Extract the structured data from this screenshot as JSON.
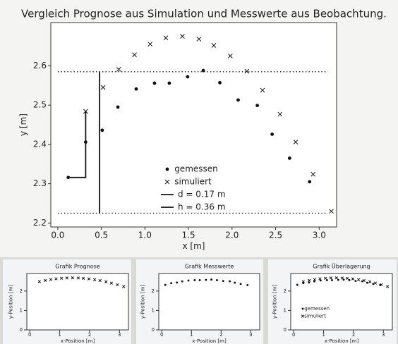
{
  "chart_data": [
    {
      "type": "scatter",
      "title": "Vergleich Prognose aus Simulation und Messwerte aus Beobachtung.",
      "xlabel": "x [m]",
      "ylabel": "y [m]",
      "xlim": [
        -0.08,
        3.2
      ],
      "ylim": [
        2.19,
        2.71
      ],
      "xticks": [
        {
          "value": 0,
          "label": "0.0"
        },
        0.5,
        {
          "value": 1,
          "label": "1.0"
        },
        1.5,
        {
          "value": 2,
          "label": "2.0"
        },
        2.5,
        {
          "value": 3,
          "label": "3.0"
        }
      ],
      "yticks": [
        2.2,
        2.3,
        2.4,
        2.5,
        2.6
      ],
      "legend": "lower center",
      "series": [
        {
          "name": "gemessen",
          "marker": "dot",
          "color": "#111",
          "x": [
            0.12,
            0.32,
            0.51,
            0.69,
            0.9,
            1.11,
            1.28,
            1.49,
            1.67,
            1.86,
            2.07,
            2.29,
            2.46,
            2.66,
            2.89
          ],
          "values": [
            2.316,
            2.406,
            2.436,
            2.495,
            2.541,
            2.556,
            2.556,
            2.572,
            2.588,
            2.557,
            2.513,
            2.499,
            2.426,
            2.365,
            2.305
          ]
        },
        {
          "name": "simuliert",
          "marker": "x",
          "color": "#111",
          "x": [
            0.32,
            0.52,
            0.7,
            0.88,
            1.06,
            1.24,
            1.43,
            1.62,
            1.79,
            1.98,
            2.17,
            2.35,
            2.55,
            2.73,
            2.93,
            3.14
          ],
          "values": [
            2.484,
            2.545,
            2.591,
            2.628,
            2.655,
            2.671,
            2.675,
            2.668,
            2.652,
            2.625,
            2.586,
            2.538,
            2.477,
            2.406,
            2.324,
            2.23
          ]
        },
        {
          "name": "d = 0.17 m",
          "marker": "line",
          "color": "#111",
          "x": [
            0.12,
            0.32,
            0.32
          ],
          "values": [
            2.316,
            2.316,
            2.486
          ]
        },
        {
          "name": "h = 0.36 m",
          "marker": "line",
          "color": "#111",
          "x": [
            0.48,
            0.48
          ],
          "values": [
            2.225,
            2.585
          ]
        }
      ],
      "reference_lines": [
        {
          "x": [
            0,
            3.1
          ],
          "values": [
            2.585,
            2.585
          ]
        },
        {
          "x": [
            0,
            3.1
          ],
          "values": [
            2.225,
            2.225
          ]
        }
      ]
    },
    {
      "type": "scatter",
      "title": "Grafik Prognose",
      "xlabel": "x-Position [m]",
      "ylabel": "y-Position [m]",
      "xlim": [
        -0.1,
        3.3
      ],
      "ylim": [
        0,
        2.9
      ],
      "xticks": [
        0,
        1,
        2,
        3
      ],
      "yticks": [
        0,
        1,
        2
      ],
      "series": [
        {
          "name": "simuliert",
          "marker": "x",
          "color": "#111",
          "x": [
            0.32,
            0.52,
            0.7,
            0.88,
            1.06,
            1.24,
            1.43,
            1.62,
            1.79,
            1.98,
            2.17,
            2.35,
            2.55,
            2.73,
            2.93,
            3.14
          ],
          "values": [
            2.484,
            2.545,
            2.591,
            2.628,
            2.655,
            2.671,
            2.675,
            2.668,
            2.652,
            2.625,
            2.586,
            2.538,
            2.477,
            2.406,
            2.324,
            2.23
          ]
        }
      ]
    },
    {
      "type": "scatter",
      "title": "Grafik Messwerte",
      "xlabel": "x-Position [m]",
      "ylabel": "y-Position [m]",
      "xlim": [
        -0.1,
        3.3
      ],
      "ylim": [
        0,
        2.9
      ],
      "xticks": [
        0,
        1,
        2,
        3
      ],
      "yticks": [
        0,
        1,
        2
      ],
      "series": [
        {
          "name": "gemessen",
          "marker": "dot",
          "color": "#111",
          "x": [
            0.12,
            0.32,
            0.51,
            0.69,
            0.9,
            1.11,
            1.28,
            1.49,
            1.67,
            1.86,
            2.07,
            2.29,
            2.46,
            2.66,
            2.89
          ],
          "values": [
            2.316,
            2.406,
            2.436,
            2.495,
            2.541,
            2.556,
            2.556,
            2.572,
            2.588,
            2.557,
            2.513,
            2.499,
            2.426,
            2.365,
            2.305
          ]
        }
      ]
    },
    {
      "type": "scatter",
      "title": "Grafik Überlagerung",
      "xlabel": "x-Position [m]",
      "ylabel": "y-Position [m]",
      "xlim": [
        -0.1,
        3.3
      ],
      "ylim": [
        0,
        2.9
      ],
      "xticks": [
        0,
        1,
        2,
        3
      ],
      "yticks": [
        0,
        1,
        2
      ],
      "legend": "lower left",
      "series": [
        {
          "name": "gemessen",
          "marker": "dot",
          "color": "#111",
          "x": [
            0.12,
            0.32,
            0.51,
            0.69,
            0.9,
            1.11,
            1.28,
            1.49,
            1.67,
            1.86,
            2.07,
            2.29,
            2.46,
            2.66,
            2.89
          ],
          "values": [
            2.316,
            2.406,
            2.436,
            2.495,
            2.541,
            2.556,
            2.556,
            2.572,
            2.588,
            2.557,
            2.513,
            2.499,
            2.426,
            2.365,
            2.305
          ]
        },
        {
          "name": "simuliert",
          "marker": "x",
          "color": "#111",
          "x": [
            0.32,
            0.52,
            0.7,
            0.88,
            1.06,
            1.24,
            1.43,
            1.62,
            1.79,
            1.98,
            2.17,
            2.35,
            2.55,
            2.73,
            2.93,
            3.14
          ],
          "values": [
            2.484,
            2.545,
            2.591,
            2.628,
            2.655,
            2.671,
            2.675,
            2.668,
            2.652,
            2.625,
            2.586,
            2.538,
            2.477,
            2.406,
            2.324,
            2.23
          ]
        }
      ]
    }
  ]
}
